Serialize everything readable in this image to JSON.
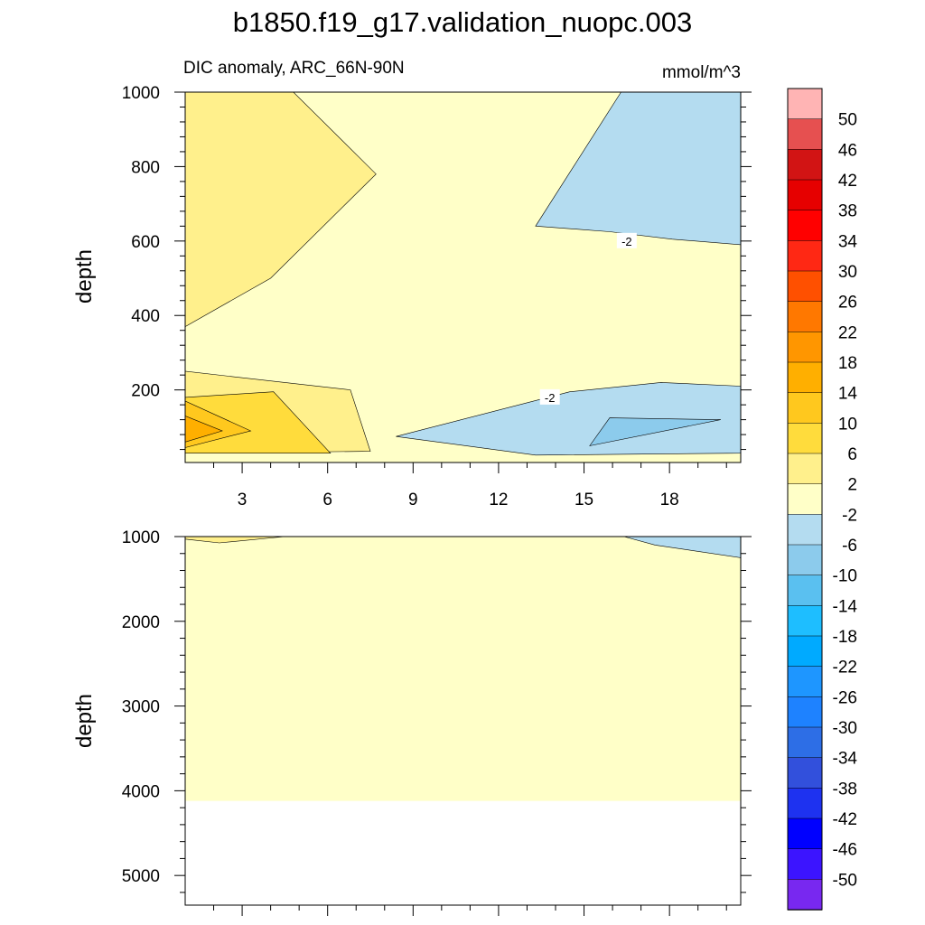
{
  "title": "b1850.f19_g17.validation_nuopc.003",
  "left_string": "DIC anomaly, ARC_66N-90N",
  "right_string": "mmol/m^3",
  "colors": {
    "pos2_6": "#fff08c",
    "pos6_10": "#ffdc3c",
    "pos10_14": "#ffc81e",
    "pos14_18": "#ffaf00",
    "neg2_neg6": "#b4dcf0",
    "neg6_neg10": "#8ccbec",
    "neutral": "#ffffc8",
    "missing": "#ffffff"
  },
  "chart_data": [
    {
      "type": "contour",
      "panel": "upper",
      "xlabel": "",
      "ylabel": "depth",
      "xlim": [
        1,
        20.5
      ],
      "ylim": [
        1000,
        5
      ],
      "x_ticks": [
        3,
        6,
        9,
        12,
        15,
        18
      ],
      "x_tick_labels": [
        "3",
        "6",
        "9",
        "12",
        "15",
        "18"
      ],
      "y_ticks": [
        200,
        400,
        600,
        800,
        1000
      ],
      "y_tick_labels": [
        "200",
        "400",
        "600",
        "800",
        "1000"
      ],
      "background_band": "-2 to 2",
      "contour_line_labels": [
        "-2",
        "-2"
      ],
      "regions": [
        {
          "band": "2 to 6",
          "desc": "upper-left near surface",
          "points": [
            [
              1,
              30
            ],
            [
              7.5,
              35
            ],
            [
              6.8,
              200
            ],
            [
              1,
              250
            ]
          ]
        },
        {
          "band": "2 to 6",
          "desc": "mid-depth left lobe",
          "points": [
            [
              1,
              370
            ],
            [
              4,
              500
            ],
            [
              7.7,
              780
            ],
            [
              4.8,
              1000
            ],
            [
              1,
              1000
            ]
          ]
        },
        {
          "band": "6 to 10",
          "desc": "upper-left core",
          "points": [
            [
              1,
              30
            ],
            [
              6.1,
              30
            ],
            [
              4.1,
              195
            ],
            [
              1,
              180
            ]
          ]
        },
        {
          "band": "10 to 14",
          "desc": "surface maximum",
          "points": [
            [
              1,
              45
            ],
            [
              3.3,
              90
            ],
            [
              1,
              170
            ]
          ]
        },
        {
          "band": "14 to 18",
          "desc": "surface peak",
          "points": [
            [
              1,
              60
            ],
            [
              2.3,
              90
            ],
            [
              1,
              130
            ]
          ]
        },
        {
          "band": "-2 to -6",
          "desc": "upper-right near surface",
          "points": [
            [
              13.3,
              25
            ],
            [
              20.5,
              30
            ],
            [
              20.5,
              210
            ],
            [
              17.7,
              220
            ],
            [
              14.5,
              195
            ],
            [
              8.4,
              75
            ]
          ]
        },
        {
          "band": "-6 to -10",
          "desc": "upper-right core",
          "points": [
            [
              15.2,
              50
            ],
            [
              19.8,
              120
            ],
            [
              15.9,
              125
            ]
          ]
        },
        {
          "band": "-2 to -6",
          "desc": "deep right",
          "points": [
            [
              13.3,
              640
            ],
            [
              15.9,
              625
            ],
            [
              18.1,
              605
            ],
            [
              20.5,
              590
            ],
            [
              20.5,
              1000
            ],
            [
              16.3,
              1000
            ]
          ]
        }
      ]
    },
    {
      "type": "contour",
      "panel": "lower",
      "xlabel": "",
      "ylabel": "depth",
      "xlim": [
        1,
        20.5
      ],
      "ylim": [
        1000,
        5350
      ],
      "y_ticks": [
        1000,
        2000,
        3000,
        4000,
        5000
      ],
      "y_tick_labels": [
        "1000",
        "2000",
        "3000",
        "4000",
        "5000"
      ],
      "background_band": "-2 to 2",
      "missing_below": 4120,
      "regions": [
        {
          "band": "2 to 6",
          "desc": "thin sliver top-left",
          "points": [
            [
              1,
              1000
            ],
            [
              4.5,
              1000
            ],
            [
              2.2,
              1075
            ],
            [
              1,
              1030
            ]
          ]
        },
        {
          "band": "-2 to -6",
          "desc": "top-right",
          "points": [
            [
              16.4,
              1000
            ],
            [
              20.5,
              1000
            ],
            [
              20.5,
              1250
            ],
            [
              17.5,
              1100
            ]
          ]
        }
      ]
    }
  ],
  "colorbar": {
    "labels": [
      "50",
      "46",
      "42",
      "38",
      "34",
      "30",
      "26",
      "22",
      "18",
      "14",
      "10",
      "6",
      "2",
      "-2",
      "-6",
      "-10",
      "-14",
      "-18",
      "-22",
      "-26",
      "-30",
      "-34",
      "-38",
      "-42",
      "-46",
      "-50"
    ],
    "colors": [
      "#ffb4b4",
      "#e65050",
      "#d21414",
      "#e60000",
      "#ff0000",
      "#ff2814",
      "#ff5000",
      "#ff7800",
      "#ff9600",
      "#ffaf00",
      "#ffc81e",
      "#ffdc3c",
      "#fff08c",
      "#ffffc8",
      "#b4dcf0",
      "#8ccbec",
      "#5ac0f0",
      "#1ebeff",
      "#00aaff",
      "#1e96ff",
      "#1e82ff",
      "#2d6ee6",
      "#3250dc",
      "#1e32f0",
      "#0000ff",
      "#3c14ff",
      "#7828f0"
    ]
  }
}
